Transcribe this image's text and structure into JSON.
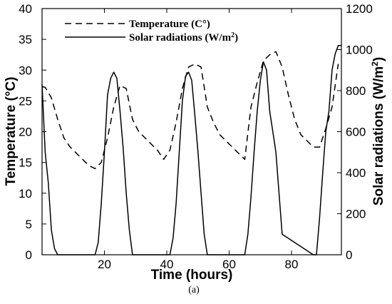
{
  "chart_data": {
    "type": "line",
    "caption": "(a)",
    "xlabel": "Time (hours)",
    "ylabel_left": "Temperature (°C)",
    "ylabel_right": "Solar radiations (W/m",
    "ylabel_right_sup": "2",
    "ylabel_right_close": ")",
    "xlim": [
      0,
      96
    ],
    "ylim_left": [
      0,
      40
    ],
    "ylim_right": [
      0,
      1200
    ],
    "x_ticks": [
      "20",
      "40",
      "60",
      "80"
    ],
    "y_left_ticks": [
      "0",
      "5",
      "10",
      "15",
      "20",
      "25",
      "30",
      "35",
      "40"
    ],
    "y_right_ticks": [
      "0",
      "200",
      "400",
      "600",
      "800",
      "1000",
      "1200"
    ],
    "legend_position": "top-left",
    "series": [
      {
        "name": "Temperature (C°)",
        "axis": "left",
        "style": "dashed",
        "x": [
          0,
          1,
          3,
          5,
          7,
          9,
          11,
          13,
          15,
          17,
          19,
          21,
          23,
          25,
          27,
          29,
          31,
          33,
          35,
          37,
          39,
          41,
          43,
          45,
          47,
          49,
          51,
          53,
          55,
          57,
          59,
          61,
          63,
          65,
          67,
          69,
          71,
          73,
          75,
          77,
          79,
          81,
          83,
          85,
          87,
          89,
          91,
          93,
          95
        ],
        "y": [
          27.3,
          27.2,
          25.5,
          22.0,
          19.0,
          17.5,
          16.5,
          15.5,
          14.5,
          14.0,
          15.0,
          19.0,
          24.0,
          27.5,
          27.0,
          22.0,
          20.0,
          19.0,
          18.0,
          17.0,
          15.5,
          17.0,
          21.5,
          27.0,
          30.5,
          31.0,
          30.5,
          24.0,
          21.5,
          19.5,
          18.5,
          17.5,
          16.5,
          15.5,
          24.0,
          28.0,
          31.5,
          32.5,
          33.0,
          30.5,
          26.0,
          22.0,
          19.5,
          18.5,
          17.5,
          17.5,
          20.5,
          24.0,
          31.0
        ]
      },
      {
        "name": "Solar radiations (W/m",
        "name_sup": "2",
        "name_close": ")",
        "axis": "right",
        "style": "solid",
        "x": [
          0,
          1,
          2,
          3,
          4,
          5,
          6,
          16,
          17,
          18,
          19,
          20,
          21,
          22,
          23,
          24,
          25,
          26,
          27,
          28,
          29,
          40,
          41,
          42,
          43,
          44,
          45,
          46,
          47,
          48,
          49,
          50,
          51,
          52,
          53,
          64,
          65,
          66,
          67,
          68,
          69,
          70,
          71,
          72,
          73,
          74,
          75,
          76,
          77,
          87,
          88,
          89,
          90,
          91,
          92,
          93,
          94,
          95,
          96
        ],
        "y": [
          830,
          500,
          350,
          120,
          30,
          0,
          0,
          0,
          0,
          60,
          250,
          500,
          780,
          860,
          890,
          860,
          700,
          520,
          300,
          120,
          0,
          0,
          0,
          80,
          250,
          500,
          750,
          870,
          890,
          850,
          680,
          500,
          300,
          100,
          0,
          0,
          0,
          100,
          280,
          500,
          700,
          850,
          940,
          900,
          700,
          600,
          500,
          300,
          100,
          0,
          0,
          180,
          400,
          600,
          700,
          900,
          980,
          1020,
          1020
        ]
      }
    ]
  }
}
